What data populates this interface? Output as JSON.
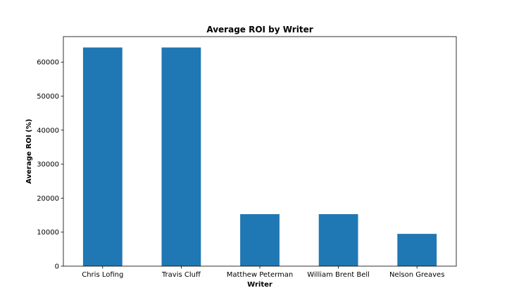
{
  "chart_data": {
    "type": "bar",
    "title": "Average ROI by Writer",
    "xlabel": "Writer",
    "ylabel": "Average ROI (%)",
    "categories": [
      "Chris Lofing",
      "Travis Cluff",
      "Matthew Peterman",
      "William Brent Bell",
      "Nelson Greaves"
    ],
    "values": [
      64300,
      64300,
      15300,
      15300,
      9500
    ],
    "ylim": [
      0,
      67500
    ],
    "yticks": [
      0,
      10000,
      20000,
      30000,
      40000,
      50000,
      60000
    ],
    "grid": false,
    "bar_color": "#1f77b4"
  }
}
